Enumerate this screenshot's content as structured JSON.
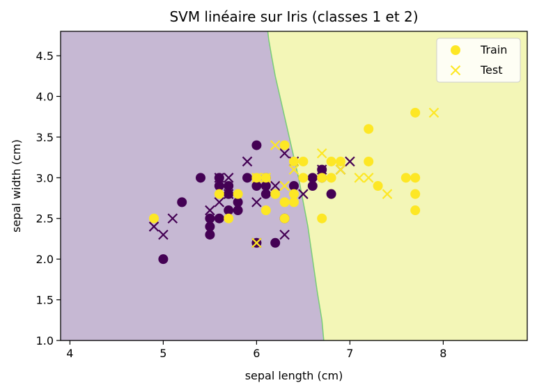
{
  "chart_data": {
    "type": "scatter",
    "title": "SVM linéaire sur Iris (classes 1 et 2)",
    "xlabel": "sepal length (cm)",
    "ylabel": "sepal width (cm)",
    "xlim": [
      3.9,
      8.9
    ],
    "ylim": [
      1.0,
      4.8
    ],
    "xticks": [
      4,
      5,
      6,
      7,
      8
    ],
    "yticks": [
      1.0,
      1.5,
      2.0,
      2.5,
      3.0,
      3.5,
      4.0,
      4.5
    ],
    "legend_position": "top-right",
    "grid": false,
    "legend": [
      {
        "label": "Train",
        "marker": "circle"
      },
      {
        "label": "Test",
        "marker": "x"
      }
    ],
    "colors": {
      "class_1": "#440154",
      "class_2": "#fde725",
      "region_class_1": "#c6b8d3",
      "region_class_2": "#f3f6b7",
      "boundary": "#5ec962"
    },
    "decision_boundary": [
      [
        6.12,
        4.8
      ],
      [
        6.13,
        4.7
      ],
      [
        6.16,
        4.5
      ],
      [
        6.2,
        4.25
      ],
      [
        6.25,
        4.0
      ],
      [
        6.3,
        3.75
      ],
      [
        6.35,
        3.5
      ],
      [
        6.4,
        3.25
      ],
      [
        6.45,
        3.0
      ],
      [
        6.5,
        2.7
      ],
      [
        6.55,
        2.4
      ],
      [
        6.6,
        2.0
      ],
      [
        6.65,
        1.6
      ],
      [
        6.7,
        1.25
      ],
      [
        6.72,
        1.0
      ]
    ],
    "series": [
      {
        "name": "Train",
        "class": 1,
        "marker": "circle",
        "points": [
          [
            5.0,
            2.0
          ],
          [
            5.2,
            2.7
          ],
          [
            5.4,
            3.0
          ],
          [
            5.5,
            2.3
          ],
          [
            5.5,
            2.4
          ],
          [
            5.5,
            2.5
          ],
          [
            5.6,
            2.5
          ],
          [
            5.6,
            2.9
          ],
          [
            5.6,
            3.0
          ],
          [
            5.7,
            2.6
          ],
          [
            5.7,
            2.8
          ],
          [
            5.7,
            2.9
          ],
          [
            5.8,
            2.6
          ],
          [
            5.8,
            2.7
          ],
          [
            5.9,
            3.0
          ],
          [
            6.0,
            2.2
          ],
          [
            6.0,
            2.9
          ],
          [
            6.0,
            3.4
          ],
          [
            6.1,
            2.8
          ],
          [
            6.1,
            2.9
          ],
          [
            6.1,
            3.0
          ],
          [
            6.2,
            2.2
          ],
          [
            6.3,
            2.5
          ],
          [
            6.4,
            2.9
          ],
          [
            6.6,
            2.9
          ],
          [
            6.6,
            3.0
          ],
          [
            6.7,
            3.0
          ],
          [
            6.7,
            3.1
          ],
          [
            6.8,
            2.8
          ]
        ]
      },
      {
        "name": "Train",
        "class": 2,
        "marker": "circle",
        "points": [
          [
            4.9,
            2.5
          ],
          [
            5.6,
            2.8
          ],
          [
            5.7,
            2.5
          ],
          [
            5.8,
            2.8
          ],
          [
            6.0,
            3.0
          ],
          [
            6.1,
            2.6
          ],
          [
            6.1,
            3.0
          ],
          [
            6.2,
            2.8
          ],
          [
            6.3,
            2.5
          ],
          [
            6.3,
            2.7
          ],
          [
            6.3,
            3.4
          ],
          [
            6.4,
            2.7
          ],
          [
            6.4,
            2.8
          ],
          [
            6.4,
            3.2
          ],
          [
            6.5,
            3.0
          ],
          [
            6.5,
            3.2
          ],
          [
            6.7,
            2.5
          ],
          [
            6.7,
            3.0
          ],
          [
            6.8,
            3.0
          ],
          [
            6.8,
            3.2
          ],
          [
            6.9,
            3.2
          ],
          [
            7.2,
            3.2
          ],
          [
            7.2,
            3.6
          ],
          [
            7.3,
            2.9
          ],
          [
            7.6,
            3.0
          ],
          [
            7.7,
            2.6
          ],
          [
            7.7,
            2.8
          ],
          [
            7.7,
            3.0
          ],
          [
            7.7,
            3.8
          ]
        ]
      },
      {
        "name": "Test",
        "class": 1,
        "marker": "x",
        "points": [
          [
            4.9,
            2.4
          ],
          [
            5.0,
            2.3
          ],
          [
            5.1,
            2.5
          ],
          [
            5.5,
            2.6
          ],
          [
            5.6,
            2.7
          ],
          [
            5.6,
            3.0
          ],
          [
            5.7,
            2.8
          ],
          [
            5.7,
            3.0
          ],
          [
            5.9,
            3.2
          ],
          [
            6.0,
            2.2
          ],
          [
            6.0,
            2.7
          ],
          [
            6.2,
            2.9
          ],
          [
            6.3,
            2.3
          ],
          [
            6.3,
            3.3
          ],
          [
            6.4,
            3.2
          ],
          [
            6.5,
            2.8
          ],
          [
            6.7,
            3.1
          ],
          [
            6.9,
            3.1
          ],
          [
            7.0,
            3.2
          ]
        ]
      },
      {
        "name": "Test",
        "class": 2,
        "marker": "x",
        "points": [
          [
            6.0,
            2.2
          ],
          [
            6.0,
            3.0
          ],
          [
            6.1,
            3.0
          ],
          [
            6.2,
            3.4
          ],
          [
            6.3,
            2.9
          ],
          [
            6.4,
            3.1
          ],
          [
            6.7,
            3.3
          ],
          [
            6.9,
            3.1
          ],
          [
            7.1,
            3.0
          ],
          [
            7.2,
            3.0
          ],
          [
            7.4,
            2.8
          ],
          [
            7.9,
            3.8
          ]
        ]
      }
    ]
  }
}
